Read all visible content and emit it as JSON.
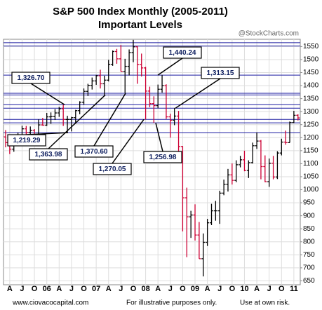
{
  "chart_data": {
    "type": "ohlc",
    "title": "S&P 500 Index Monthly (2005-2011)",
    "subtitle": "Important Levels",
    "watermark": "@StockCharts.com",
    "footer": [
      "www.ciovacocapital.com",
      "For illustrative purposes only.",
      "Use at own risk."
    ],
    "categories": [
      null,
      "A",
      null,
      null,
      "J",
      null,
      null,
      "O",
      null,
      null,
      "06",
      null,
      null,
      "A",
      null,
      null,
      "J",
      null,
      null,
      "O",
      null,
      null,
      "07",
      null,
      null,
      "A",
      null,
      null,
      "J",
      null,
      null,
      "O",
      null,
      null,
      "08",
      null,
      null,
      "A",
      null,
      null,
      "J",
      null,
      null,
      "O",
      null,
      null,
      "09",
      null,
      null,
      "A",
      null,
      null,
      "J",
      null,
      null,
      "O",
      null,
      null,
      "10",
      null,
      null,
      "A",
      null,
      null,
      "J",
      null,
      null,
      "O",
      null,
      null,
      "11",
      null
    ],
    "open": [
      1203,
      1181,
      1156,
      1191,
      1191,
      1234,
      1220,
      1228,
      1207,
      1249,
      1248,
      1280,
      1281,
      1295,
      1311,
      1270,
      1270,
      1277,
      1304,
      1336,
      1378,
      1401,
      1418,
      1438,
      1407,
      1421,
      1482,
      1531,
      1503,
      1455,
      1474,
      1527,
      1549,
      1481,
      1468,
      1379,
      1331,
      1323,
      1386,
      1400,
      1280,
      1267,
      1283,
      1166,
      969,
      896,
      903,
      826,
      735,
      798,
      873,
      919,
      919,
      987,
      1021,
      1057,
      1036,
      1096,
      1115,
      1074,
      1104,
      1169,
      1187,
      1089,
      1031,
      1102,
      1049,
      1141,
      1183,
      1181,
      1258,
      1286
    ],
    "high": [
      1229,
      1191,
      1199,
      1219,
      1246,
      1245,
      1243,
      1233,
      1270,
      1276,
      1295,
      1297,
      1310,
      1318,
      1326,
      1284,
      1280,
      1307,
      1340,
      1389,
      1407,
      1431,
      1441,
      1461,
      1438,
      1499,
      1535,
      1541,
      1556,
      1503,
      1539,
      1576,
      1552,
      1523,
      1472,
      1396,
      1359,
      1404,
      1441,
      1405,
      1292,
      1314,
      1303,
      1168,
      1008,
      919,
      944,
      876,
      832,
      888,
      946,
      957,
      996,
      1039,
      1080,
      1101,
      1113,
      1130,
      1150,
      1113,
      1181,
      1220,
      1191,
      1132,
      1120,
      1130,
      1148,
      1196,
      1227,
      1262,
      1303,
      1290
    ],
    "low": [
      1163,
      1137,
      1146,
      1188,
      1183,
      1201,
      1205,
      1168,
      1201,
      1246,
      1245,
      1253,
      1268,
      1280,
      1245,
      1219,
      1224,
      1253,
      1290,
      1327,
      1360,
      1385,
      1403,
      1389,
      1364,
      1416,
      1476,
      1484,
      1454,
      1371,
      1439,
      1490,
      1407,
      1435,
      1270,
      1317,
      1257,
      1313,
      1373,
      1272,
      1200,
      1248,
      1106,
      840,
      741,
      815,
      805,
      735,
      667,
      784,
      864,
      881,
      869,
      979,
      993,
      1020,
      1029,
      1086,
      1071,
      1045,
      1101,
      1157,
      1040,
      1029,
      1011,
      1040,
      1041,
      1132,
      1173,
      1181,
      1257,
      1266
    ],
    "close": [
      1181,
      1156,
      1191,
      1191,
      1234,
      1220,
      1228,
      1207,
      1249,
      1248,
      1280,
      1281,
      1295,
      1311,
      1270,
      1270,
      1277,
      1304,
      1336,
      1378,
      1401,
      1418,
      1438,
      1407,
      1421,
      1482,
      1531,
      1503,
      1455,
      1474,
      1527,
      1549,
      1481,
      1468,
      1379,
      1331,
      1323,
      1386,
      1400,
      1280,
      1267,
      1283,
      1166,
      969,
      896,
      903,
      826,
      735,
      798,
      873,
      919,
      919,
      987,
      1021,
      1057,
      1036,
      1096,
      1115,
      1074,
      1104,
      1169,
      1187,
      1089,
      1031,
      1102,
      1049,
      1141,
      1183,
      1181,
      1258,
      1286,
      1276
    ],
    "up_color": "#000000",
    "down_color": "#cc0033",
    "levels": [
      1565,
      1552,
      {
        "value": 1440.24,
        "label": "1,440.24"
      },
      {
        "value": 1370.6,
        "label": "1,370.60"
      },
      {
        "value": 1363.98,
        "label": "1,363.98"
      },
      {
        "value": 1326.7,
        "label": "1,326.70"
      },
      {
        "value": 1313.15,
        "label": "1,313.15"
      },
      {
        "value": 1270.05,
        "label": "1,270.05"
      },
      {
        "value": 1256.98,
        "label": "1,256.98"
      },
      {
        "value": 1219.29,
        "label": "1,219.29"
      }
    ],
    "level_color": "#1a1aa0",
    "ylim": [
      635,
      1578
    ],
    "yticks": [
      650,
      700,
      750,
      800,
      850,
      900,
      950,
      1000,
      1050,
      1100,
      1150,
      1200,
      1250,
      1300,
      1350,
      1400,
      1450,
      1500,
      1550
    ],
    "grid": true
  }
}
